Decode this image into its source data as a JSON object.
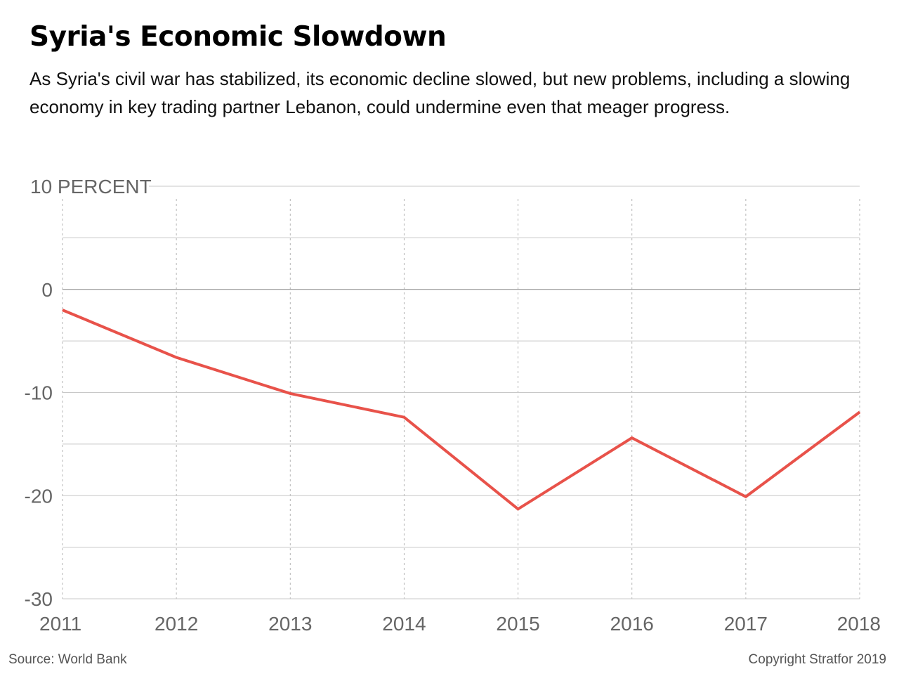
{
  "title": "Syria's Economic Slowdown",
  "subtitle": "As Syria's civil war has stabilized, its economic decline slowed, but new problems, including a slowing economy in key trading partner Lebanon, could undermine even that meager progress.",
  "source": "Source: World Bank",
  "copyright": "Copyright Stratfor 2019",
  "colors": {
    "line": "#e8524a",
    "grid": "#c8c8c8",
    "zero": "#999999",
    "tick_text": "#666666"
  },
  "chart_data": {
    "type": "line",
    "title": "Syria's Economic Slowdown",
    "xlabel": "",
    "ylabel": "",
    "x": [
      2011,
      2012,
      2013,
      2014,
      2015,
      2016,
      2017,
      2018
    ],
    "series": [
      {
        "values": [
          -2.0,
          -6.6,
          -10.1,
          -12.4,
          -21.3,
          -14.4,
          -20.1,
          -11.9
        ]
      }
    ],
    "ylim": [
      -30,
      10
    ],
    "y_ticks": [
      10,
      0,
      -10,
      -20,
      -30
    ],
    "y_tick_labels": [
      "10 PERCENT",
      "0",
      "-10",
      "-20",
      "-30"
    ],
    "x_tick_labels": [
      "2011",
      "2012",
      "2013",
      "2014",
      "2015",
      "2016",
      "2017",
      "2018"
    ],
    "grid": true,
    "legend": "none"
  }
}
